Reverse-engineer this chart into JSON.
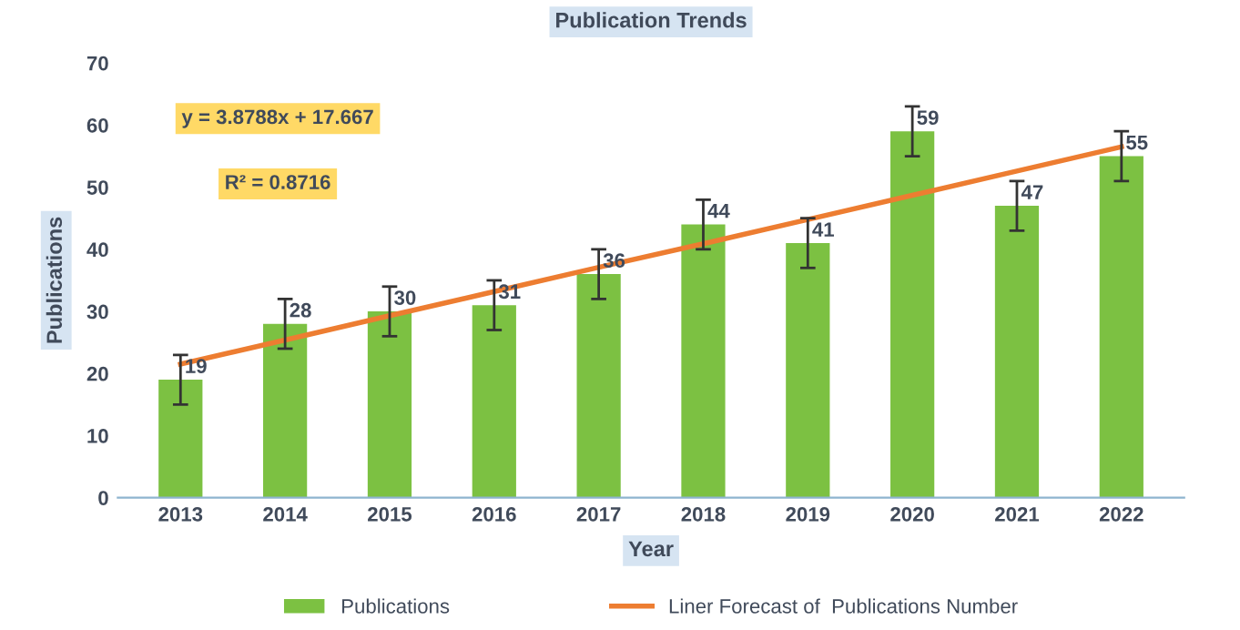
{
  "chart_data": {
    "type": "bar",
    "title": "Publication Trends",
    "xlabel": "Year",
    "ylabel": "Publications",
    "categories": [
      "2013",
      "2014",
      "2015",
      "2016",
      "2017",
      "2018",
      "2019",
      "2020",
      "2021",
      "2022"
    ],
    "series": [
      {
        "name": "Publications",
        "color": "#7cc142",
        "values": [
          19,
          28,
          30,
          31,
          36,
          44,
          41,
          59,
          47,
          55
        ],
        "errors": [
          4,
          4,
          4,
          4,
          4,
          4,
          4,
          4,
          4,
          4
        ],
        "value_labels": [
          "19",
          "28",
          "30",
          "31",
          "36",
          "44",
          "41",
          "59",
          "47",
          "55"
        ]
      },
      {
        "name": "Liner Forecast of  Publications Number",
        "type": "line",
        "color": "#ed7d31",
        "values": [
          21.5,
          25.4,
          29.3,
          33.2,
          37.1,
          40.9,
          44.8,
          48.7,
          52.6,
          56.5
        ]
      }
    ],
    "annotations": [
      "y = 3.8788x + 17.667",
      "R² = 0.8716"
    ],
    "ylim": [
      0,
      70
    ],
    "yticks": [
      0,
      10,
      20,
      30,
      40,
      50,
      60,
      70
    ],
    "grid": false,
    "legend": "bottom"
  }
}
